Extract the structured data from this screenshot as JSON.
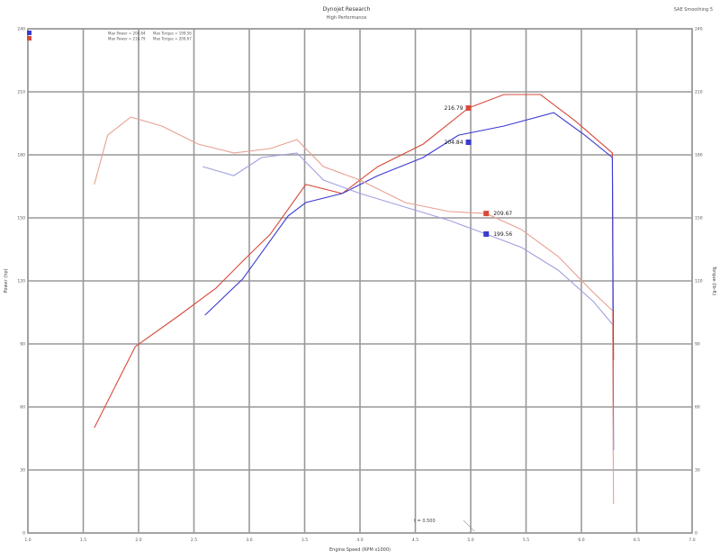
{
  "header": {
    "title": "Dynojet Research",
    "subtitle": "High Performance",
    "top_right": "SAE Smoothing 5"
  },
  "legend": [
    {
      "color": "#3a3ad0",
      "power": "Max Power = 204.84",
      "torque": "Max Torque = 199.56"
    },
    {
      "color": "#d84a3a",
      "power": "Max Power = 216.79",
      "torque": "Max Torque = 209.67"
    }
  ],
  "chart_data": {
    "type": "line",
    "title": "Dynojet Research",
    "xlabel": "Engine Speed (RPM x1000)",
    "ylabel": "Power (hp)",
    "y2label": "Torque (lb-ft)",
    "xlim": [
      1.0,
      7.0
    ],
    "xticks": [
      "1.0",
      "1.5",
      "2.0",
      "2.5",
      "3.0",
      "3.5",
      "4.0",
      "4.5",
      "5.0",
      "5.5",
      "6.0",
      "6.5",
      "7.0"
    ],
    "ylim": [
      0,
      240
    ],
    "yticks": [
      "0",
      "30",
      "60",
      "90",
      "120",
      "150",
      "180",
      "210",
      "240"
    ],
    "grid": true,
    "annotation": "t = 0.500",
    "series": [
      {
        "id": "red-power",
        "color": "#d84a3a",
        "x": [
          1.6,
          1.97,
          2.37,
          2.7,
          2.94,
          3.19,
          3.51,
          3.84,
          4.16,
          4.57,
          4.98,
          5.3,
          5.63,
          5.95,
          6.28,
          6.29
        ],
        "y": [
          50.1,
          88.7,
          103.7,
          116.6,
          129.4,
          142.3,
          165.9,
          161.6,
          174.4,
          185.1,
          202.3,
          208.7,
          208.7,
          195.9,
          180.9,
          82.3
        ]
      },
      {
        "id": "blue-power",
        "color": "#3a3ad0",
        "x": [
          2.6,
          2.94,
          3.35,
          3.51,
          3.84,
          4.16,
          4.57,
          4.89,
          5.3,
          5.75,
          6.03,
          6.28,
          6.29
        ],
        "y": [
          103.7,
          120.9,
          150.9,
          157.3,
          161.6,
          170.1,
          178.7,
          189.4,
          193.7,
          200.1,
          189.4,
          178.7,
          39.4
        ]
      },
      {
        "id": "red-torque",
        "color": "#e8a090",
        "x": [
          1.6,
          1.72,
          1.93,
          2.21,
          2.54,
          2.86,
          3.19,
          3.43,
          3.67,
          4.0,
          4.41,
          4.81,
          5.14,
          5.46,
          5.79,
          6.11,
          6.28,
          6.29
        ],
        "y": [
          165.9,
          189.4,
          198.0,
          193.7,
          185.1,
          180.9,
          183.0,
          187.3,
          174.4,
          168.0,
          157.3,
          153.0,
          152.1,
          144.4,
          131.6,
          114.4,
          105.9,
          13.7
        ]
      },
      {
        "id": "blue-torque",
        "color": "#a0a0e0",
        "x": [
          2.58,
          2.86,
          3.11,
          3.43,
          3.67,
          4.0,
          4.41,
          4.81,
          5.14,
          5.46,
          5.79,
          6.11,
          6.28
        ],
        "y": [
          174.4,
          170.1,
          178.7,
          180.9,
          168.0,
          161.6,
          155.1,
          148.7,
          142.3,
          135.9,
          125.1,
          110.1,
          99.4
        ]
      }
    ],
    "labels": [
      {
        "text": "216.79",
        "x": 4.98,
        "y": 202.3,
        "color": "#d84a3a"
      },
      {
        "text": "204.84",
        "x": 4.98,
        "y": 186.0,
        "color": "#3a3ad0"
      },
      {
        "text": "209.67",
        "x": 5.14,
        "y": 152.1,
        "color": "#d84a3a"
      },
      {
        "text": "199.56",
        "x": 5.14,
        "y": 142.3,
        "color": "#3a3ad0"
      }
    ]
  }
}
